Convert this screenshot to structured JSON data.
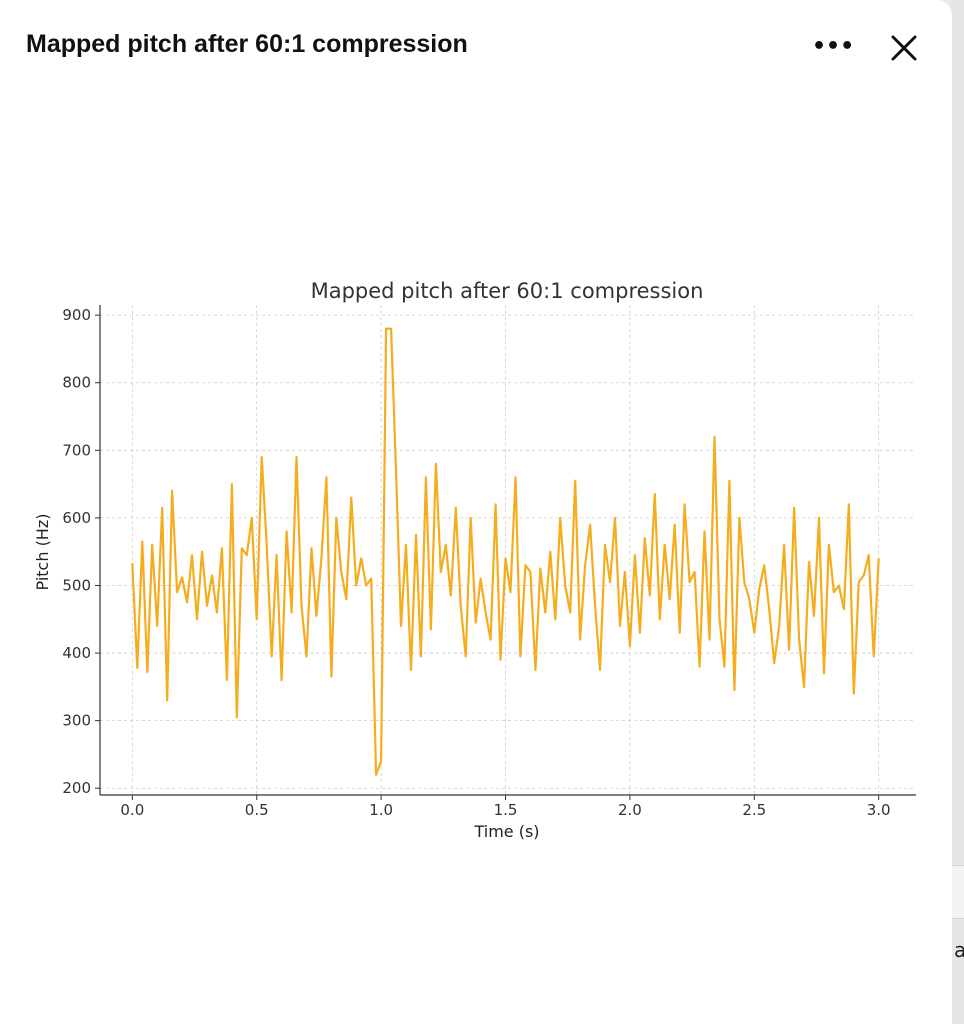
{
  "modal": {
    "title": "Mapped pitch after 60:1 compression",
    "more_icon": "ellipsis-icon",
    "close_icon": "close-icon"
  },
  "side_text": "a",
  "colors": {
    "line": "#f5ad1f",
    "grid": "#cccccc",
    "axis": "#333333"
  },
  "chart_data": {
    "type": "line",
    "title": "Mapped pitch after 60:1 compression",
    "xlabel": "Time (s)",
    "ylabel": "Pitch (Hz)",
    "xlim": [
      -0.13,
      3.15
    ],
    "ylim": [
      190,
      915
    ],
    "grid": true,
    "xticks": [
      0.0,
      0.5,
      1.0,
      1.5,
      2.0,
      2.5,
      3.0
    ],
    "xtick_labels": [
      "0.0",
      "0.5",
      "1.0",
      "1.5",
      "2.0",
      "2.5",
      "3.0"
    ],
    "yticks": [
      200,
      300,
      400,
      500,
      600,
      700,
      800,
      900
    ],
    "ytick_labels": [
      "200",
      "300",
      "400",
      "500",
      "600",
      "700",
      "800",
      "900"
    ],
    "x_start": 0.0,
    "x_step": 0.02,
    "series": [
      {
        "name": "pitch",
        "values": [
          533,
          378,
          565,
          372,
          560,
          440,
          615,
          330,
          640,
          490,
          512,
          475,
          545,
          450,
          550,
          470,
          515,
          460,
          555,
          360,
          650,
          305,
          555,
          545,
          600,
          450,
          690,
          560,
          395,
          545,
          360,
          580,
          460,
          690,
          470,
          395,
          555,
          455,
          540,
          660,
          365,
          600,
          520,
          480,
          630,
          500,
          540,
          500,
          510,
          220,
          240,
          880,
          880,
          670,
          440,
          560,
          375,
          575,
          395,
          660,
          435,
          680,
          520,
          560,
          485,
          615,
          470,
          395,
          600,
          445,
          510,
          460,
          420,
          620,
          390,
          540,
          490,
          660,
          395,
          530,
          520,
          375,
          525,
          460,
          550,
          450,
          600,
          500,
          460,
          655,
          420,
          530,
          590,
          470,
          375,
          560,
          505,
          600,
          440,
          520,
          410,
          545,
          430,
          570,
          485,
          635,
          450,
          560,
          480,
          590,
          430,
          620,
          505,
          520,
          380,
          580,
          420,
          720,
          450,
          380,
          655,
          345,
          600,
          505,
          480,
          430,
          495,
          530,
          465,
          385,
          440,
          560,
          405,
          615,
          420,
          350,
          535,
          455,
          600,
          370,
          560,
          490,
          500,
          465,
          620,
          340,
          505,
          515,
          545,
          395,
          540
        ]
      }
    ]
  }
}
